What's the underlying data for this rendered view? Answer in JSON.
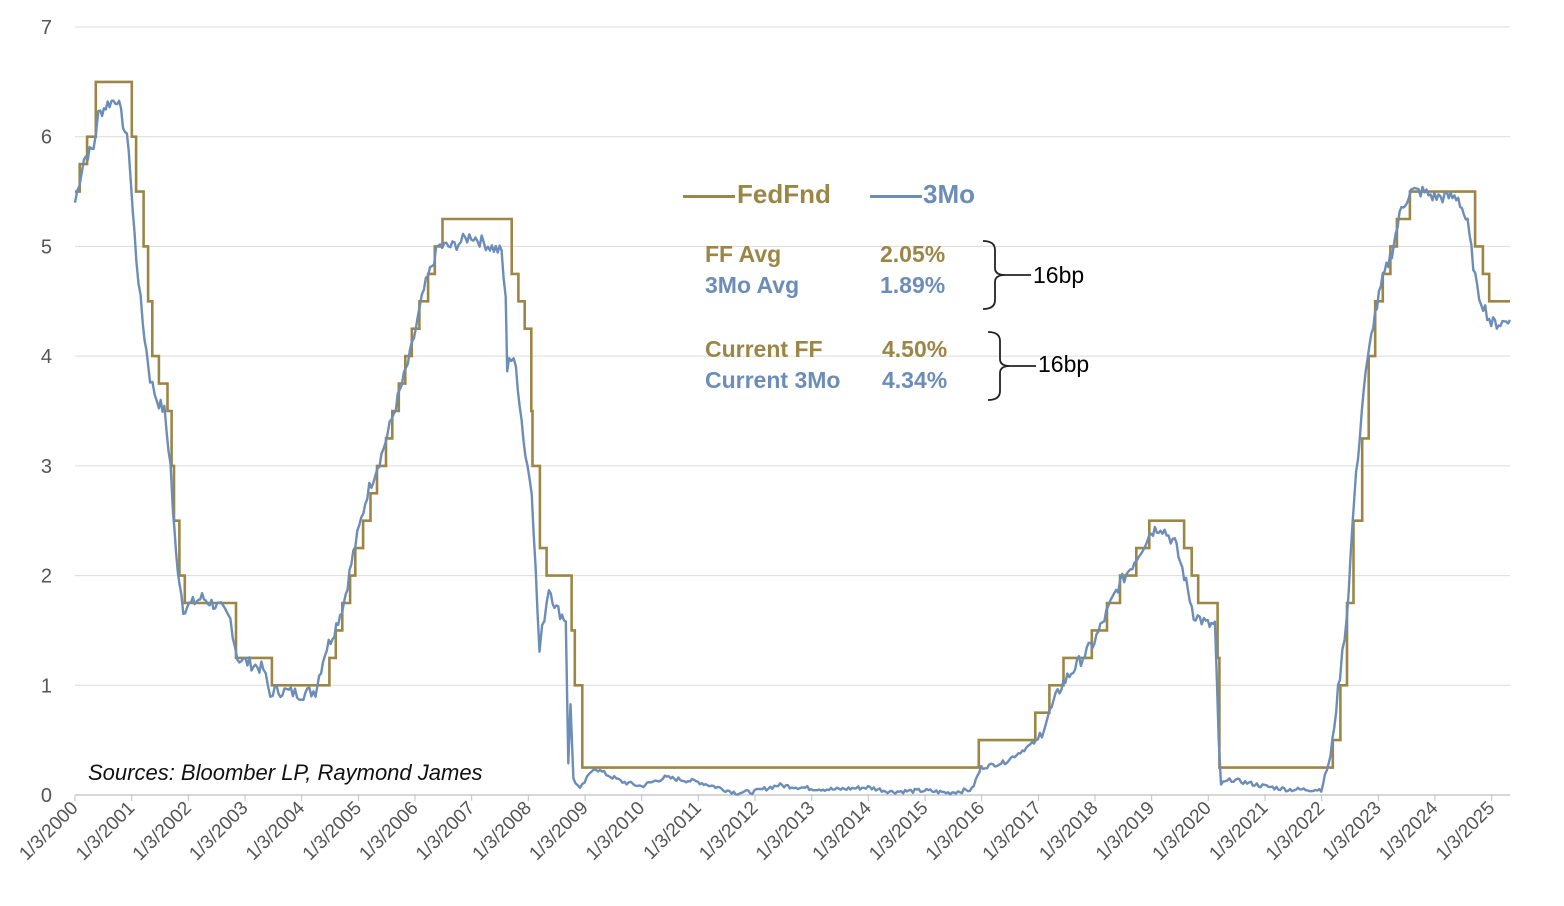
{
  "chart_data": {
    "type": "line",
    "ylim": [
      0,
      7
    ],
    "yticks": [
      0,
      1,
      2,
      3,
      4,
      5,
      6,
      7
    ],
    "x_tick_labels": [
      "1/3/2000",
      "1/3/2001",
      "1/3/2002",
      "1/3/2003",
      "1/3/2004",
      "1/3/2005",
      "1/3/2006",
      "1/3/2007",
      "1/3/2008",
      "1/3/2009",
      "1/3/2010",
      "1/3/2011",
      "1/3/2012",
      "1/3/2013",
      "1/3/2014",
      "1/3/2015",
      "1/3/2016",
      "1/3/2017",
      "1/3/2018",
      "1/3/2019",
      "1/3/2020",
      "1/3/2021",
      "1/3/2022",
      "1/3/2023",
      "1/3/2024",
      "1/3/2025"
    ],
    "grid": true,
    "legend": {
      "position": "top-center",
      "entries": [
        "FedFnd",
        "3Mo"
      ]
    },
    "colors": {
      "FedFnd": "#9C8646",
      "3Mo": "#6B8DB8"
    },
    "series": [
      {
        "name": "FedFnd",
        "x": [
          "2000-01-03",
          "2000-02-02",
          "2000-03-21",
          "2000-05-16",
          "2001-01-03",
          "2001-01-31",
          "2001-03-20",
          "2001-04-18",
          "2001-05-15",
          "2001-06-27",
          "2001-08-21",
          "2001-09-17",
          "2001-10-02",
          "2001-11-06",
          "2001-12-11",
          "2002-11-06",
          "2003-06-25",
          "2004-06-30",
          "2004-08-10",
          "2004-09-21",
          "2004-11-10",
          "2004-12-14",
          "2005-02-02",
          "2005-03-22",
          "2005-05-03",
          "2005-06-30",
          "2005-08-09",
          "2005-09-20",
          "2005-11-01",
          "2005-12-13",
          "2006-01-31",
          "2006-03-28",
          "2006-05-10",
          "2006-06-29",
          "2007-09-18",
          "2007-10-31",
          "2007-12-11",
          "2008-01-22",
          "2008-01-30",
          "2008-03-18",
          "2008-04-30",
          "2008-10-08",
          "2008-10-29",
          "2008-12-16",
          "2015-12-16",
          "2016-12-14",
          "2017-03-15",
          "2017-06-14",
          "2017-12-13",
          "2018-03-21",
          "2018-06-13",
          "2018-09-26",
          "2018-12-19",
          "2019-07-31",
          "2019-09-18",
          "2019-10-30",
          "2020-03-03",
          "2020-03-15",
          "2022-03-16",
          "2022-05-04",
          "2022-06-15",
          "2022-07-27",
          "2022-09-21",
          "2022-11-02",
          "2022-12-14",
          "2023-02-01",
          "2023-03-22",
          "2023-05-03",
          "2023-07-26",
          "2024-09-18",
          "2024-11-07",
          "2024-12-18",
          "2025-05-01"
        ],
        "values": [
          5.5,
          5.75,
          6.0,
          6.5,
          6.0,
          5.5,
          5.0,
          4.5,
          4.0,
          3.75,
          3.5,
          3.0,
          2.5,
          2.0,
          1.75,
          1.25,
          1.0,
          1.25,
          1.5,
          1.75,
          2.0,
          2.25,
          2.5,
          2.75,
          3.0,
          3.25,
          3.5,
          3.75,
          4.0,
          4.25,
          4.5,
          4.75,
          5.0,
          5.25,
          4.75,
          4.5,
          4.25,
          3.5,
          3.0,
          2.25,
          2.0,
          1.5,
          1.0,
          0.25,
          0.5,
          0.75,
          1.0,
          1.25,
          1.5,
          1.75,
          2.0,
          2.25,
          2.5,
          2.25,
          2.0,
          1.75,
          1.25,
          0.25,
          0.5,
          1.0,
          1.75,
          2.5,
          3.25,
          4.0,
          4.5,
          4.75,
          5.0,
          5.25,
          5.5,
          5.0,
          4.75,
          4.5,
          4.5
        ]
      },
      {
        "name": "3Mo",
        "x": [
          "2000-01-03",
          "2000-03-01",
          "2000-05-01",
          "2000-06-01",
          "2000-08-01",
          "2000-10-01",
          "2000-12-15",
          "2001-01-10",
          "2001-02-01",
          "2001-03-15",
          "2001-05-01",
          "2001-06-15",
          "2001-08-01",
          "2001-09-10",
          "2001-09-25",
          "2001-10-15",
          "2001-12-01",
          "2002-02-01",
          "2002-04-01",
          "2002-06-01",
          "2002-08-01",
          "2002-10-01",
          "2002-11-15",
          "2003-02-01",
          "2003-05-01",
          "2003-06-15",
          "2003-07-01",
          "2003-09-01",
          "2004-01-01",
          "2004-04-01",
          "2004-06-01",
          "2004-08-01",
          "2004-10-01",
          "2004-12-01",
          "2005-03-01",
          "2005-06-01",
          "2005-09-01",
          "2005-12-01",
          "2006-03-01",
          "2006-06-01",
          "2006-09-01",
          "2007-01-01",
          "2007-05-01",
          "2007-07-15",
          "2007-08-10",
          "2007-08-20",
          "2007-09-01",
          "2007-10-15",
          "2007-12-15",
          "2008-01-25",
          "2008-03-15",
          "2008-04-01",
          "2008-05-15",
          "2008-07-01",
          "2008-09-01",
          "2008-09-17",
          "2008-10-01",
          "2008-10-20",
          "2008-12-01",
          "2009-01-15",
          "2009-03-01",
          "2009-06-01",
          "2009-09-01",
          "2009-12-31",
          "2010-06-01",
          "2010-12-31",
          "2011-06-01",
          "2011-09-01",
          "2011-12-31",
          "2012-06-01",
          "2012-12-31",
          "2013-06-01",
          "2013-12-31",
          "2014-06-01",
          "2014-12-31",
          "2015-06-01",
          "2015-11-01",
          "2015-12-31",
          "2016-06-01",
          "2016-12-31",
          "2017-06-01",
          "2017-12-31",
          "2018-06-01",
          "2018-09-01",
          "2018-12-31",
          "2019-03-01",
          "2019-06-01",
          "2019-08-01",
          "2019-10-01",
          "2019-12-31",
          "2020-02-15",
          "2020-03-10",
          "2020-03-25",
          "2020-06-01",
          "2020-12-31",
          "2021-06-01",
          "2021-12-31",
          "2022-03-01",
          "2022-05-01",
          "2022-06-15",
          "2022-08-01",
          "2022-10-01",
          "2022-12-01",
          "2023-02-01",
          "2023-04-01",
          "2023-06-01",
          "2023-08-01",
          "2023-10-15",
          "2023-12-31",
          "2024-04-01",
          "2024-06-01",
          "2024-08-01",
          "2024-10-01",
          "2024-12-31",
          "2025-03-01",
          "2025-05-01"
        ],
        "values": [
          5.4,
          5.8,
          5.9,
          6.2,
          6.3,
          6.35,
          5.9,
          5.3,
          4.9,
          4.3,
          3.8,
          3.6,
          3.5,
          3.0,
          2.6,
          2.2,
          1.7,
          1.75,
          1.8,
          1.75,
          1.7,
          1.6,
          1.25,
          1.2,
          1.15,
          0.9,
          0.95,
          0.95,
          0.92,
          0.95,
          1.3,
          1.5,
          1.75,
          2.2,
          2.75,
          3.1,
          3.55,
          4.0,
          4.6,
          5.0,
          5.0,
          5.1,
          5.0,
          4.95,
          4.5,
          3.9,
          4.0,
          3.9,
          3.1,
          2.8,
          1.3,
          1.5,
          1.9,
          1.7,
          1.6,
          0.3,
          0.8,
          0.15,
          0.05,
          0.15,
          0.25,
          0.18,
          0.12,
          0.08,
          0.16,
          0.12,
          0.06,
          0.02,
          0.03,
          0.09,
          0.06,
          0.05,
          0.07,
          0.03,
          0.04,
          0.02,
          0.05,
          0.25,
          0.3,
          0.5,
          1.0,
          1.4,
          1.9,
          2.1,
          2.4,
          2.45,
          2.3,
          2.0,
          1.65,
          1.55,
          1.55,
          0.5,
          0.1,
          0.14,
          0.08,
          0.05,
          0.05,
          0.35,
          1.1,
          1.65,
          2.7,
          3.7,
          4.3,
          4.7,
          4.95,
          5.35,
          5.5,
          5.5,
          5.45,
          5.45,
          5.45,
          5.2,
          4.6,
          4.3,
          4.3,
          4.33
        ]
      }
    ],
    "annotations": {
      "ff_avg_label": "FF Avg",
      "ff_avg_value": "2.05%",
      "mo_avg_label": "3Mo Avg",
      "mo_avg_value": "1.89%",
      "avg_diff": "16bp",
      "current_ff_label": "Current FF",
      "current_ff_value": "4.50%",
      "current_mo_label": "Current 3Mo",
      "current_mo_value": "4.34%",
      "current_diff": "16bp"
    },
    "source": "Sources: Bloomber LP, Raymond James"
  }
}
